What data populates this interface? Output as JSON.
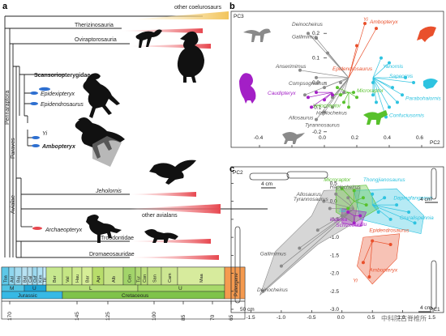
{
  "panel_a": {
    "label": "a",
    "taxa": {
      "coelurosaurs": "other coelurosaurs",
      "therizinosauria": "Therizinosauria",
      "oviraptorosauria": "Oviraptorosauria",
      "scansoriopterygidae": "Scansoriopterygidae",
      "epidexipteryx": "Epidexipteryx",
      "epidendrosaurus": "Epidendrosaurus",
      "yi": "Yi",
      "ambopteryx": "Ambopteryx",
      "jeholornis": "Jeholornis",
      "other_avialans": "other avialans",
      "archaeopteryx": "Archaeopteryx",
      "troodontidae": "Troodontidae",
      "dromaeosauridae": "Dromaeosauridae"
    },
    "clades": {
      "pennaraptora": "Pennaraptora",
      "paraves": "Paraves",
      "avialae": "Avialae"
    },
    "timescale": {
      "stages": [
        "Toa",
        "Aal",
        "Baj",
        "Bat",
        "Cal",
        "Oxf",
        "Kim",
        "Tit",
        "Ber",
        "Val",
        "Hau",
        "Bar",
        "Apt",
        "Alb",
        "Cen",
        "Tur",
        "Con",
        "San",
        "Cam",
        "Maa",
        "Paleogene"
      ],
      "epochs": [
        "M",
        "U",
        "L",
        "U"
      ],
      "periods": [
        "Jurassic",
        "Cretaceous"
      ],
      "ages": [
        "170",
        "145",
        "125",
        "100",
        "85",
        "70",
        "65"
      ]
    }
  },
  "panel_b": {
    "label": "b",
    "ylabel": "PC3",
    "xlabel": "PC2",
    "labels": {
      "deinocheirus": "Deinocheirus",
      "gallimimus": "Gallimimus",
      "yi": "Yi",
      "ambopteryx": "Ambopteryx",
      "anserimimus": "Anserimimus",
      "epidendrosaurus": "Epidendrosaurus",
      "yanornis": "Yanornis",
      "sapeornis": "Sapeornis",
      "compsognathus": "Compsognathus",
      "caudipteryx": "Caudipteryx",
      "microraptor": "Microraptor",
      "parabohaiornis": "Parabohaiornis",
      "velociraptor": "Velociraptor",
      "haplocheirus": "Haplocheirus",
      "allosaurus": "Allosaurus",
      "confuciusornis": "Confuciusornis",
      "tyrannosaurus": "Tyrannosaurus"
    },
    "xticks": [
      "-0.4",
      "-0.2",
      "0.0",
      "0.2",
      "0.4",
      "0.6"
    ],
    "yticks": [
      "0.2",
      "0.1",
      "0.0",
      "-0.1",
      "-0.2"
    ]
  },
  "panel_c": {
    "label": "c",
    "ylabel": "PC2",
    "xlabel": "PC1",
    "labels": {
      "microraptor": "Microraptor",
      "haplocheirus": "Haplocheirus",
      "allosaurus": "Allosaurus",
      "tyrannosaurus": "Tyrannosaurus",
      "thongjianosaurus": "Thongjianosaurus",
      "dapingfangensis": "Dapingfangensis",
      "sapeornis": "Sa",
      "ingenia": "Ingenia",
      "schizooura": "Schizooura",
      "cruralispennia": "Cruralispennia",
      "epidendrosaurus": "Epidendrosaurus",
      "gallimimus": "Gallimimus",
      "deinocheirus": "Deinocheirus",
      "yi": "Yi",
      "ambopteryx": "Ambopteryx",
      "bu": "Bu"
    },
    "scales": {
      "s1": "4 cm",
      "s2": "4 cm",
      "s3": "4 cm",
      "s4": "50 cm"
    },
    "xticks": [
      "-1.5",
      "-1.0",
      "-0.5",
      "0.0",
      "0.5",
      "1.0",
      "1.5"
    ],
    "yticks": [
      "0.5",
      "0.0",
      "-0.5",
      "-1.0",
      "-1.5",
      "-2.0",
      "-2.5",
      "-3.0"
    ]
  },
  "watermark": "中科院古脊椎所",
  "colors": {
    "gold": "#f2c45b",
    "pink": "#e7474f",
    "cyan": "#2ec3e0",
    "green": "#58c12c",
    "purple": "#a31fc6",
    "gray": "#8a8a8a",
    "orange": "#e9502c",
    "blue": "#2e6fd0"
  }
}
